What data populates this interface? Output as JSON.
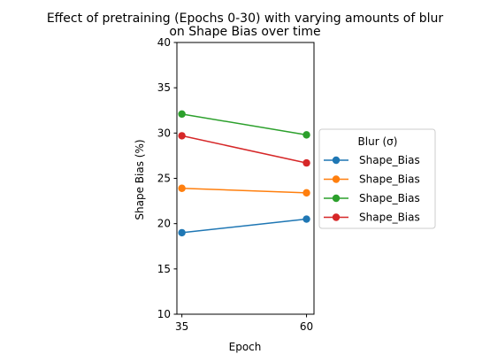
{
  "chart_data": {
    "type": "line",
    "title_line1": "Effect of pretraining (Epochs 0-30) with varying amounts of blur",
    "title_line2": "on Shape Bias over time",
    "xlabel": "Epoch",
    "ylabel": "Shape Bias (%)",
    "x": [
      35,
      60
    ],
    "xticks": [
      35,
      60
    ],
    "xlim": [
      34,
      61.5
    ],
    "ylim": [
      10,
      40
    ],
    "yticks": [
      10,
      15,
      20,
      25,
      30,
      35,
      40
    ],
    "grid": false,
    "legend": {
      "title": "Blur (σ)",
      "placement": "right-outside"
    },
    "series": [
      {
        "name": "Shape_Bias",
        "color": "#1f77b4",
        "values": [
          19.0,
          20.5
        ]
      },
      {
        "name": "Shape_Bias",
        "color": "#ff7f0e",
        "values": [
          23.9,
          23.4
        ]
      },
      {
        "name": "Shape_Bias",
        "color": "#2ca02c",
        "values": [
          32.1,
          29.8
        ]
      },
      {
        "name": "Shape_Bias",
        "color": "#d62728",
        "values": [
          29.7,
          26.7
        ]
      }
    ]
  }
}
